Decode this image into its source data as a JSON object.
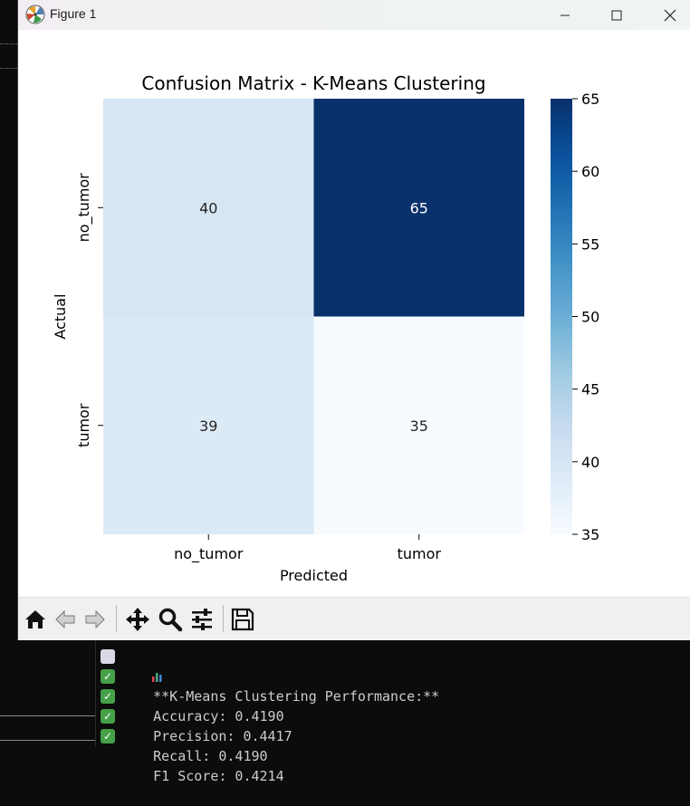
{
  "window": {
    "title": "Figure 1"
  },
  "chart_data": {
    "type": "heatmap",
    "title": "Confusion Matrix - K-Means Clustering",
    "xlabel": "Predicted",
    "ylabel": "Actual",
    "x_categories": [
      "no_tumor",
      "tumor"
    ],
    "y_categories": [
      "no_tumor",
      "tumor"
    ],
    "values": [
      [
        40,
        65
      ],
      [
        39,
        35
      ]
    ],
    "colormap": "Blues",
    "colorbar": {
      "min": 35,
      "max": 65,
      "ticks": [
        35,
        40,
        45,
        50,
        55,
        60,
        65
      ]
    },
    "colors": {
      "low": "#f7fbff",
      "high": "#08306b"
    }
  },
  "toolbar": {
    "buttons": [
      "home-icon",
      "back-arrow-icon",
      "forward-arrow-icon",
      "pan-icon",
      "zoom-icon",
      "configure-subplots-icon",
      "save-icon"
    ]
  },
  "console": {
    "lines": [
      {
        "icon": "bar-chart-icon",
        "text": "**K-Means Clustering Performance:**"
      },
      {
        "icon": "check-mark-icon",
        "text": "Accuracy: 0.4190"
      },
      {
        "icon": "check-mark-icon",
        "text": "Precision: 0.4417"
      },
      {
        "icon": "check-mark-icon",
        "text": "Recall: 0.4190"
      },
      {
        "icon": "check-mark-icon",
        "text": "F1 Score: 0.4214"
      }
    ]
  }
}
